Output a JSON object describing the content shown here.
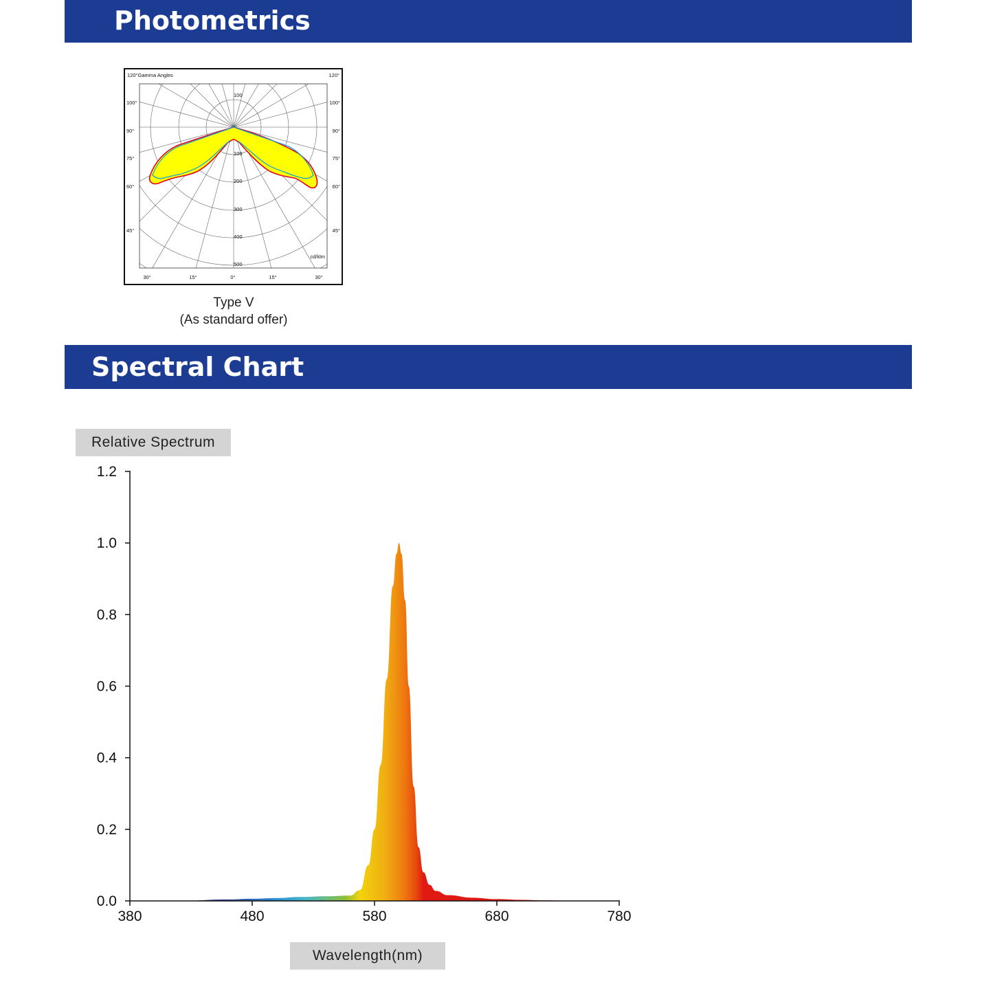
{
  "sections": {
    "photometrics_title": "Photometrics",
    "spectral_title": "Spectral Chart"
  },
  "polar": {
    "header_left": "120°Gamma Angles",
    "header_right": "120°",
    "side_angle_labels": [
      "100°",
      "90°",
      "75°",
      "60°",
      "45°"
    ],
    "bottom_angle_labels": [
      "30°",
      "15°",
      "0°",
      "15°",
      "30°"
    ],
    "radial_labels": [
      "100",
      "100",
      "200",
      "300",
      "400",
      "500"
    ],
    "unit": "cd/klm",
    "caption_line1": "Type V",
    "caption_line2": "(As standard offer)",
    "fill_color": "#ffff00",
    "outline_red": "#e0001b",
    "outline_blue": "#1aa4d4"
  },
  "chart_data": {
    "type": "area",
    "ylabel": "Relative Spectrum",
    "xlabel": "Wavelength(nm)",
    "xlim": [
      380,
      780
    ],
    "ylim": [
      0,
      1.2
    ],
    "x_ticks": [
      380,
      480,
      580,
      680,
      780
    ],
    "y_ticks": [
      "0.0",
      "0.2",
      "0.4",
      "0.6",
      "0.8",
      "1.0",
      "1.2"
    ],
    "x": [
      380,
      420,
      460,
      480,
      500,
      520,
      540,
      560,
      568,
      575,
      580,
      585,
      590,
      595,
      598,
      600,
      602,
      605,
      608,
      612,
      616,
      620,
      625,
      630,
      640,
      660,
      680,
      700,
      720,
      740,
      760,
      780
    ],
    "y": [
      0.0,
      0.0,
      0.004,
      0.006,
      0.008,
      0.011,
      0.013,
      0.015,
      0.03,
      0.1,
      0.2,
      0.38,
      0.62,
      0.88,
      0.97,
      1.0,
      0.97,
      0.84,
      0.6,
      0.32,
      0.15,
      0.08,
      0.045,
      0.028,
      0.016,
      0.009,
      0.005,
      0.003,
      0.0015,
      0.0007,
      0.0002,
      0.0
    ]
  }
}
